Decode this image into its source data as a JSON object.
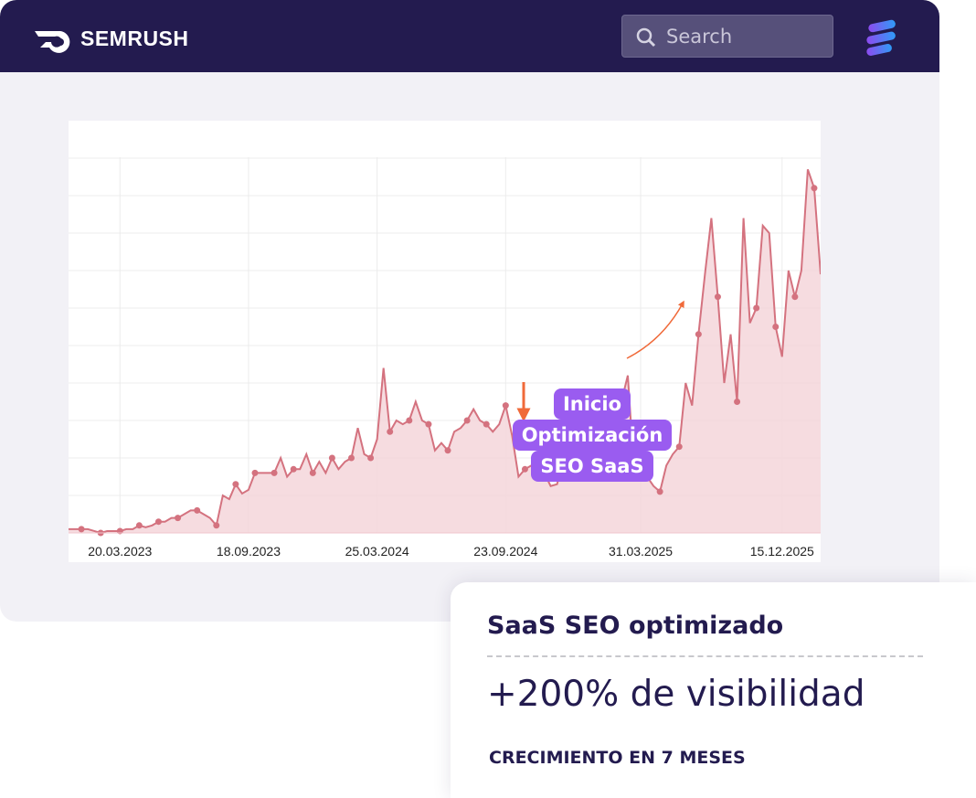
{
  "header": {
    "logo": "SEMRUSH",
    "search_placeholder": "Search"
  },
  "chart_data": {
    "type": "area",
    "categories": [
      null,
      null,
      null,
      null,
      null,
      null,
      null,
      null,
      "20.03.2023",
      null,
      null,
      null,
      null,
      null,
      null,
      null,
      null,
      null,
      null,
      null,
      null,
      null,
      null,
      null,
      null,
      null,
      null,
      null,
      "18.09.2023",
      null,
      null,
      null,
      null,
      null,
      null,
      null,
      null,
      null,
      null,
      null,
      null,
      null,
      null,
      null,
      null,
      null,
      null,
      null,
      "25.03.2024",
      null,
      null,
      null,
      null,
      null,
      null,
      null,
      null,
      null,
      null,
      null,
      null,
      null,
      null,
      null,
      null,
      null,
      null,
      null,
      "23.09.2024",
      null,
      null,
      null,
      null,
      null,
      null,
      null,
      null,
      null,
      null,
      null,
      null,
      null,
      null,
      null,
      null,
      null,
      null,
      null,
      null,
      "31.03.2025",
      null,
      null,
      null,
      null,
      null,
      null,
      null,
      null,
      null,
      null,
      null,
      null,
      null,
      null,
      null,
      null,
      null,
      null,
      null,
      null,
      null,
      "15.12.2025",
      null,
      null,
      null,
      null,
      null,
      null
    ],
    "values": [
      1,
      1,
      1,
      1,
      0.5,
      0,
      0.5,
      0.5,
      0.5,
      1,
      1,
      2,
      1.5,
      2,
      3,
      3,
      4,
      4,
      5,
      6,
      6,
      5,
      4,
      2,
      10,
      9,
      13,
      10.5,
      11.5,
      16,
      16,
      16,
      16,
      20,
      15,
      17,
      17,
      21,
      16,
      19,
      16,
      20,
      17,
      19,
      20,
      28,
      21,
      20,
      25,
      44,
      27,
      30,
      29,
      30,
      35,
      30,
      29,
      22,
      24,
      22,
      27,
      28,
      30,
      33,
      30,
      29,
      27,
      29,
      34,
      26,
      15,
      17,
      18,
      18,
      16,
      12.5,
      13,
      20,
      16,
      17,
      16,
      15,
      30,
      32,
      30,
      35,
      35,
      42,
      16,
      18,
      15,
      12.5,
      11,
      18,
      21,
      23,
      40,
      34,
      53,
      69,
      84,
      63,
      40,
      53,
      35,
      84,
      56,
      60,
      82,
      80,
      55,
      47,
      70,
      63,
      70,
      97,
      92,
      69
    ],
    "color": "#d4727f",
    "ylim": [
      0,
      110
    ],
    "yticks": [
      0,
      10,
      20,
      30,
      40,
      50,
      60,
      70,
      80,
      90,
      100
    ],
    "grid": true,
    "annotation": [
      "Inicio",
      "Optimización",
      "SEO SaaS"
    ]
  },
  "card": {
    "title": "SaaS SEO optimizado",
    "headline": "+200% de visibilidad",
    "caption": "CRECIMIENTO EN 7 MESES"
  }
}
